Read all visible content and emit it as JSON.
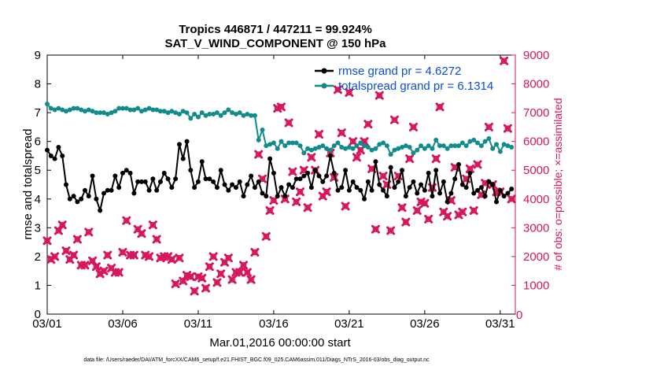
{
  "chart_data": {
    "type": "line",
    "title": "Tropics 446871 / 447211 = 99.924%",
    "subtitle": "SAT_V_WIND_COMPONENT @ 150 hPa",
    "xlabel": "Mar.01,2016 00:00:00 start",
    "ylabel": "rmse and totalspread",
    "y2label": "# of obs: o=possible; ×=assimilated",
    "xlim": [
      1.0,
      32.0
    ],
    "ylim": [
      0,
      9
    ],
    "y2lim": [
      0,
      9000
    ],
    "xticks": [
      1,
      6,
      11,
      16,
      21,
      26,
      31
    ],
    "xticklabels": [
      "03/01",
      "03/06",
      "03/11",
      "03/16",
      "03/21",
      "03/26",
      "03/31"
    ],
    "yticks": [
      "0",
      "1",
      "2",
      "3",
      "4",
      "5",
      "6",
      "7",
      "8",
      "9"
    ],
    "y2ticks": [
      "0",
      "1000",
      "2000",
      "3000",
      "4000",
      "5000",
      "6000",
      "7000",
      "8000",
      "9000"
    ],
    "legend_position": "top-right",
    "series": [
      {
        "name": "rmse grand pr = 4.6272",
        "color": "#000000",
        "axis": "left",
        "x": [
          1.0,
          1.25,
          1.5,
          1.75,
          2.0,
          2.25,
          2.5,
          2.75,
          3.0,
          3.25,
          3.5,
          3.75,
          4.0,
          4.25,
          4.5,
          4.75,
          5.0,
          5.25,
          5.5,
          5.75,
          6.0,
          6.25,
          6.5,
          6.75,
          7.0,
          7.25,
          7.5,
          7.75,
          8.0,
          8.25,
          8.5,
          8.75,
          9.0,
          9.25,
          9.5,
          9.75,
          10.0,
          10.25,
          10.5,
          10.75,
          11.0,
          11.25,
          11.5,
          11.75,
          12.0,
          12.25,
          12.5,
          12.75,
          13.0,
          13.25,
          13.5,
          13.75,
          14.0,
          14.25,
          14.5,
          14.75,
          15.0,
          15.25,
          15.5,
          15.75,
          16.0,
          16.25,
          16.5,
          16.75,
          17.0,
          17.25,
          17.5,
          17.75,
          18.0,
          18.25,
          18.5,
          18.75,
          19.0,
          19.25,
          19.5,
          19.75,
          20.0,
          20.25,
          20.5,
          20.75,
          21.0,
          21.25,
          21.5,
          21.75,
          22.0,
          22.25,
          22.5,
          22.75,
          23.0,
          23.25,
          23.5,
          23.75,
          24.0,
          24.25,
          24.5,
          24.75,
          25.0,
          25.25,
          25.5,
          25.75,
          26.0,
          26.25,
          26.5,
          26.75,
          27.0,
          27.25,
          27.5,
          27.75,
          28.0,
          28.25,
          28.5,
          28.75,
          29.0,
          29.25,
          29.5,
          29.75,
          30.0,
          30.25,
          30.5,
          30.75,
          31.0,
          31.25,
          31.5,
          31.75
        ],
        "values": [
          5.7,
          5.5,
          5.4,
          5.8,
          5.5,
          4.5,
          4.0,
          4.1,
          3.9,
          4.0,
          4.3,
          4.1,
          4.8,
          4.0,
          3.6,
          4.2,
          4.3,
          4.3,
          4.8,
          4.4,
          4.9,
          5.0,
          4.9,
          4.2,
          4.6,
          4.6,
          4.6,
          4.3,
          4.7,
          4.3,
          4.6,
          4.9,
          4.7,
          4.4,
          4.7,
          5.9,
          5.4,
          6.0,
          5.0,
          4.4,
          4.6,
          5.3,
          4.7,
          4.7,
          4.6,
          4.4,
          5.0,
          4.5,
          4.3,
          4.5,
          4.4,
          4.6,
          4.1,
          4.5,
          4.8,
          4.4,
          4.6,
          4.2,
          4.1,
          5.4,
          4.9,
          4.1,
          4.4,
          4.1,
          4.5,
          4.4,
          4.7,
          4.7,
          4.8,
          4.9,
          4.4,
          5.0,
          4.8,
          4.6,
          4.8,
          5.5,
          4.9,
          4.3,
          4.4,
          5.0,
          4.3,
          4.6,
          4.4,
          4.3,
          4.0,
          4.6,
          4.3,
          5.3,
          4.5,
          4.3,
          4.1,
          5.1,
          4.4,
          4.6,
          5.0,
          4.1,
          4.4,
          4.6,
          4.2,
          4.5,
          4.3,
          4.9,
          4.1,
          5.0,
          4.2,
          4.6,
          3.9,
          4.2,
          4.7,
          5.2,
          4.5,
          4.4,
          4.9,
          4.2,
          4.3,
          4.4,
          4.1,
          4.6,
          4.5,
          3.9,
          4.3,
          4.1,
          4.2,
          4.35
        ]
      },
      {
        "name": "totalspread grand pr = 6.1314",
        "color": "#128b8b",
        "axis": "left",
        "x": [
          1.0,
          1.25,
          1.5,
          1.75,
          2.0,
          2.25,
          2.5,
          2.75,
          3.0,
          3.25,
          3.5,
          3.75,
          4.0,
          4.25,
          4.5,
          4.75,
          5.0,
          5.25,
          5.5,
          5.75,
          6.0,
          6.25,
          6.5,
          6.75,
          7.0,
          7.25,
          7.5,
          7.75,
          8.0,
          8.25,
          8.5,
          8.75,
          9.0,
          9.25,
          9.5,
          9.75,
          10.0,
          10.25,
          10.5,
          10.75,
          11.0,
          11.25,
          11.5,
          11.75,
          12.0,
          12.25,
          12.5,
          12.75,
          13.0,
          13.25,
          13.5,
          13.75,
          14.0,
          14.25,
          14.5,
          14.75,
          15.0,
          15.25,
          15.5,
          15.75,
          16.0,
          16.25,
          16.5,
          16.75,
          17.0,
          17.25,
          17.5,
          17.75,
          18.0,
          18.25,
          18.5,
          18.75,
          19.0,
          19.25,
          19.5,
          19.75,
          20.0,
          20.25,
          20.5,
          20.75,
          21.0,
          21.25,
          21.5,
          21.75,
          22.0,
          22.25,
          22.5,
          22.75,
          23.0,
          23.25,
          23.5,
          23.75,
          24.0,
          24.25,
          24.5,
          24.75,
          25.0,
          25.25,
          25.5,
          25.75,
          26.0,
          26.25,
          26.5,
          26.75,
          27.0,
          27.25,
          27.5,
          27.75,
          28.0,
          28.25,
          28.5,
          28.75,
          29.0,
          29.25,
          29.5,
          29.75,
          30.0,
          30.25,
          30.5,
          30.75,
          31.0,
          31.25,
          31.5,
          31.75
        ],
        "values": [
          7.3,
          7.15,
          7.1,
          7.15,
          7.1,
          7.05,
          7.1,
          7.15,
          7.15,
          7.1,
          7.05,
          7.1,
          7.05,
          7.0,
          7.0,
          7.0,
          6.95,
          7.0,
          7.05,
          7.15,
          7.15,
          7.15,
          7.1,
          7.1,
          7.15,
          7.05,
          7.1,
          7.15,
          7.1,
          7.1,
          7.05,
          7.05,
          7.0,
          7.05,
          7.0,
          6.95,
          7.05,
          7.0,
          6.8,
          6.95,
          6.85,
          7.0,
          6.9,
          6.95,
          6.95,
          7.0,
          6.9,
          7.0,
          7.1,
          7.0,
          6.95,
          7.0,
          6.9,
          6.95,
          6.9,
          6.9,
          6.05,
          6.4,
          5.85,
          5.9,
          5.95,
          5.75,
          6.0,
          5.85,
          5.95,
          5.95,
          5.95,
          5.85,
          5.6,
          5.75,
          5.7,
          5.75,
          5.8,
          5.85,
          5.75,
          5.7,
          5.85,
          5.95,
          5.8,
          5.75,
          5.8,
          5.75,
          5.85,
          5.95,
          5.85,
          5.8,
          5.7,
          5.75,
          5.9,
          5.95,
          5.85,
          5.55,
          5.7,
          5.75,
          5.8,
          5.85,
          5.8,
          5.6,
          5.7,
          5.85,
          5.75,
          5.85,
          5.75,
          6.05,
          5.85,
          5.85,
          5.75,
          5.85,
          5.85,
          5.85,
          5.95,
          5.85,
          6.0,
          6.05,
          5.95,
          5.85,
          6.0,
          6.1,
          5.75,
          5.9,
          5.65,
          5.9,
          5.85,
          5.8
        ]
      },
      {
        "name": "# of obs possible",
        "color": "#d6165c",
        "marker": "o",
        "axis": "right",
        "x": [
          1.0,
          1.25,
          1.5,
          1.75,
          2.0,
          2.25,
          2.5,
          2.75,
          3.0,
          3.25,
          3.5,
          3.75,
          4.0,
          4.25,
          4.5,
          4.75,
          5.0,
          5.25,
          5.5,
          5.75,
          6.0,
          6.25,
          6.5,
          6.75,
          7.0,
          7.25,
          7.5,
          7.75,
          8.0,
          8.25,
          8.5,
          8.75,
          9.0,
          9.25,
          9.5,
          9.75,
          10.0,
          10.25,
          10.5,
          10.75,
          11.0,
          11.25,
          11.5,
          11.75,
          12.0,
          12.25,
          12.5,
          12.75,
          13.0,
          13.25,
          13.5,
          13.75,
          14.0,
          14.25,
          14.5,
          14.75,
          15.0,
          15.25,
          15.5,
          15.75,
          16.0,
          16.25,
          16.5,
          16.75,
          17.0,
          17.25,
          17.5,
          17.75,
          18.0,
          18.25,
          18.5,
          18.75,
          19.0,
          19.25,
          19.5,
          19.75,
          20.0,
          20.25,
          20.5,
          20.75,
          21.0,
          21.25,
          21.5,
          21.75,
          22.0,
          22.25,
          22.5,
          22.75,
          23.0,
          23.25,
          23.5,
          23.75,
          24.0,
          24.25,
          24.5,
          24.75,
          25.0,
          25.25,
          25.5,
          25.75,
          26.0,
          26.25,
          26.5,
          26.75,
          27.0,
          27.25,
          27.5,
          27.75,
          28.0,
          28.25,
          28.5,
          28.75,
          29.0,
          29.25,
          29.5,
          29.75,
          30.0,
          30.25,
          30.5,
          30.75,
          31.0,
          31.25,
          31.5,
          31.75
        ],
        "values": [
          2550,
          1900,
          2000,
          2900,
          3100,
          2200,
          1900,
          2050,
          2600,
          1700,
          1700,
          2850,
          1850,
          1650,
          1400,
          1500,
          2050,
          1600,
          1450,
          1450,
          2150,
          3250,
          2050,
          2050,
          2950,
          2800,
          2050,
          2000,
          3100,
          2600,
          1950,
          2000,
          2000,
          1900,
          1050,
          1950,
          1150,
          1350,
          1300,
          800,
          1300,
          1250,
          900,
          1650,
          2000,
          1100,
          1400,
          1800,
          1950,
          1200,
          1450,
          1450,
          1700,
          1450,
          1200,
          2150,
          5550,
          4700,
          2700,
          3600,
          3950,
          7150,
          7200,
          4000,
          6650,
          4950,
          3900,
          4250,
          5000,
          3700,
          5450,
          5000,
          6250,
          4100,
          4250,
          5600,
          4750,
          7800,
          6300,
          3750,
          7700,
          6000,
          5450,
          5700,
          6000,
          6600,
          5050,
          2950,
          7600,
          4800,
          4500,
          2900,
          6750,
          4800,
          3700,
          3200,
          5400,
          6500,
          3600,
          3900,
          3850,
          3300,
          4400,
          5400,
          7200,
          3550,
          3400,
          3950,
          5100,
          3450,
          3550,
          4700,
          5050,
          3600,
          5200,
          4150,
          4550,
          6500,
          4500,
          4250,
          4250,
          8800,
          6450,
          4000
        ]
      },
      {
        "name": "# of obs assimilated",
        "color": "#d6165c",
        "marker": "x",
        "axis": "right",
        "x": [
          1.0,
          1.25,
          1.5,
          1.75,
          2.0,
          2.25,
          2.5,
          2.75,
          3.0,
          3.25,
          3.5,
          3.75,
          4.0,
          4.25,
          4.5,
          4.75,
          5.0,
          5.25,
          5.5,
          5.75,
          6.0,
          6.25,
          6.5,
          6.75,
          7.0,
          7.25,
          7.5,
          7.75,
          8.0,
          8.25,
          8.5,
          8.75,
          9.0,
          9.25,
          9.5,
          9.75,
          10.0,
          10.25,
          10.5,
          10.75,
          11.0,
          11.25,
          11.5,
          11.75,
          12.0,
          12.25,
          12.5,
          12.75,
          13.0,
          13.25,
          13.5,
          13.75,
          14.0,
          14.25,
          14.5,
          14.75,
          15.0,
          15.25,
          15.5,
          15.75,
          16.0,
          16.25,
          16.5,
          16.75,
          17.0,
          17.25,
          17.5,
          17.75,
          18.0,
          18.25,
          18.5,
          18.75,
          19.0,
          19.25,
          19.5,
          19.75,
          20.0,
          20.25,
          20.5,
          20.75,
          21.0,
          21.25,
          21.5,
          21.75,
          22.0,
          22.25,
          22.5,
          22.75,
          23.0,
          23.25,
          23.5,
          23.75,
          24.0,
          24.25,
          24.5,
          24.75,
          25.0,
          25.25,
          25.5,
          25.75,
          26.0,
          26.25,
          26.5,
          26.75,
          27.0,
          27.25,
          27.5,
          27.75,
          28.0,
          28.25,
          28.5,
          28.75,
          29.0,
          29.25,
          29.5,
          29.75,
          30.0,
          30.25,
          30.5,
          30.75,
          31.0,
          31.25,
          31.5,
          31.75
        ],
        "values": [
          2550,
          1900,
          2000,
          2900,
          3100,
          2200,
          1900,
          2050,
          2600,
          1700,
          1700,
          2850,
          1850,
          1650,
          1400,
          1500,
          2050,
          1600,
          1450,
          1450,
          2150,
          3250,
          2050,
          2050,
          2950,
          2800,
          2050,
          2000,
          3100,
          2600,
          1950,
          2000,
          2000,
          1900,
          1050,
          1950,
          1150,
          1350,
          1300,
          800,
          1300,
          1250,
          900,
          1650,
          2000,
          1100,
          1400,
          1800,
          1950,
          1200,
          1450,
          1450,
          1700,
          1450,
          1200,
          2150,
          5550,
          4700,
          2700,
          3600,
          3950,
          7150,
          7200,
          4000,
          6650,
          4950,
          3900,
          4250,
          5000,
          3700,
          5450,
          5000,
          6250,
          4100,
          4250,
          5600,
          4750,
          7800,
          6300,
          3750,
          7700,
          6000,
          5450,
          5700,
          6000,
          6600,
          5050,
          2950,
          7600,
          4800,
          4500,
          2900,
          6750,
          4800,
          3700,
          3200,
          5400,
          6500,
          3600,
          3900,
          3850,
          3300,
          4400,
          5400,
          7200,
          3550,
          3400,
          3950,
          5100,
          3450,
          3550,
          4700,
          5050,
          3600,
          5200,
          4150,
          4550,
          6500,
          4500,
          4250,
          4250,
          8800,
          6450,
          4000
        ]
      }
    ]
  },
  "legend": {
    "rmse_label": "rmse grand pr = 4.6272",
    "spread_label": "totalspread grand pr = 6.1314"
  },
  "annotations": {
    "zero_obs_label": "0"
  },
  "footer": {
    "data_file": "data file: /Users/raeder/DAI/ATM_forcXX/CAM6_setup/f.e21.FHIST_BGC.f09_025.CAM6assim.011/Diags_NTrS_2016-03/obs_diag_output.nc"
  }
}
